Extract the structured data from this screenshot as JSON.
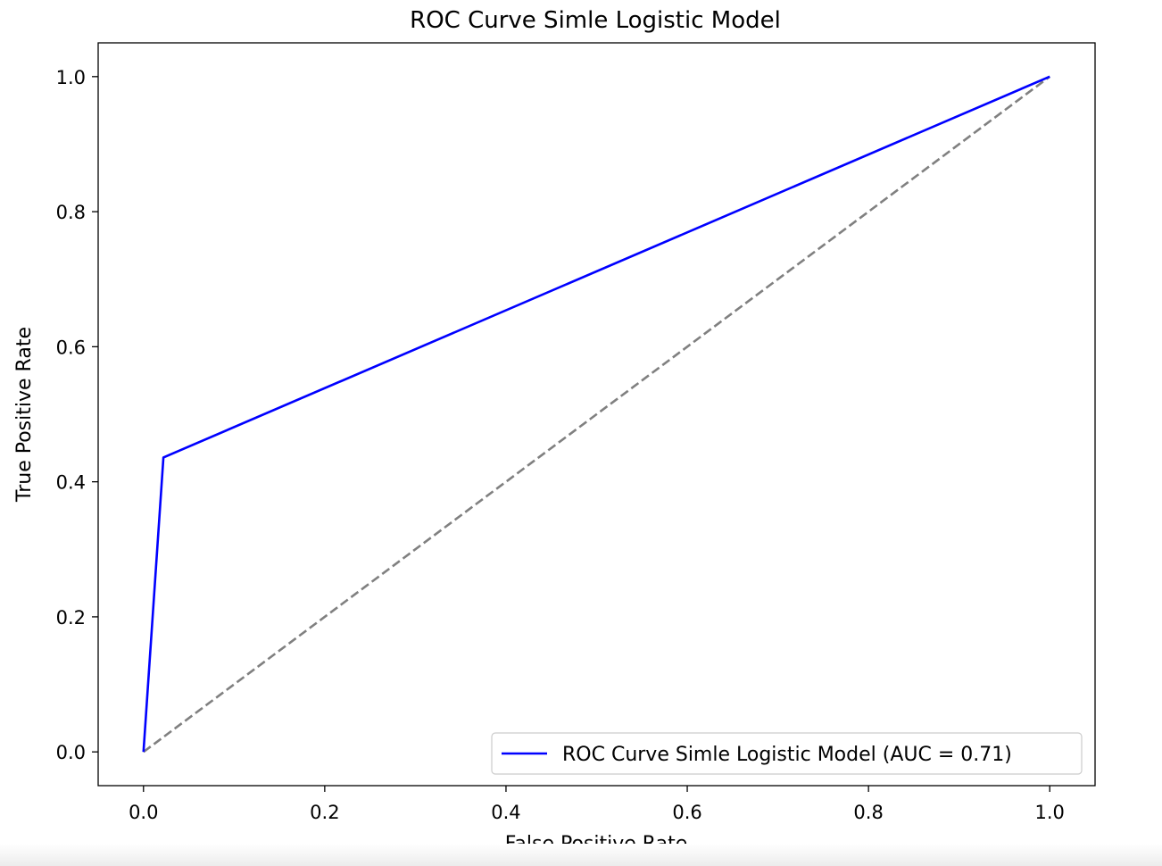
{
  "chart_data": {
    "type": "line",
    "title": "ROC Curve Simle Logistic Model",
    "xlabel": "False Positive Rate",
    "ylabel": "True Positive Rate",
    "xlim": [
      -0.05,
      1.05
    ],
    "ylim": [
      -0.05,
      1.05
    ],
    "xticks": [
      0.0,
      0.2,
      0.4,
      0.6,
      0.8,
      1.0
    ],
    "yticks": [
      0.0,
      0.2,
      0.4,
      0.6,
      0.8,
      1.0
    ],
    "xtick_labels": [
      "0.0",
      "0.2",
      "0.4",
      "0.6",
      "0.8",
      "1.0"
    ],
    "ytick_labels": [
      "0.0",
      "0.2",
      "0.4",
      "0.6",
      "0.8",
      "1.0"
    ],
    "grid": false,
    "legend_position": "lower-right",
    "series": [
      {
        "name": "ROC Curve Simle Logistic Model (AUC = 0.71)",
        "x": [
          0.0,
          0.022,
          1.0
        ],
        "y": [
          0.0,
          0.436,
          1.0
        ],
        "color": "#0000ff",
        "style": "solid",
        "in_legend": true
      },
      {
        "x": [
          0.0,
          1.0
        ],
        "y": [
          0.0,
          1.0
        ],
        "color": "#808080",
        "style": "dashed",
        "in_legend": false
      }
    ]
  }
}
